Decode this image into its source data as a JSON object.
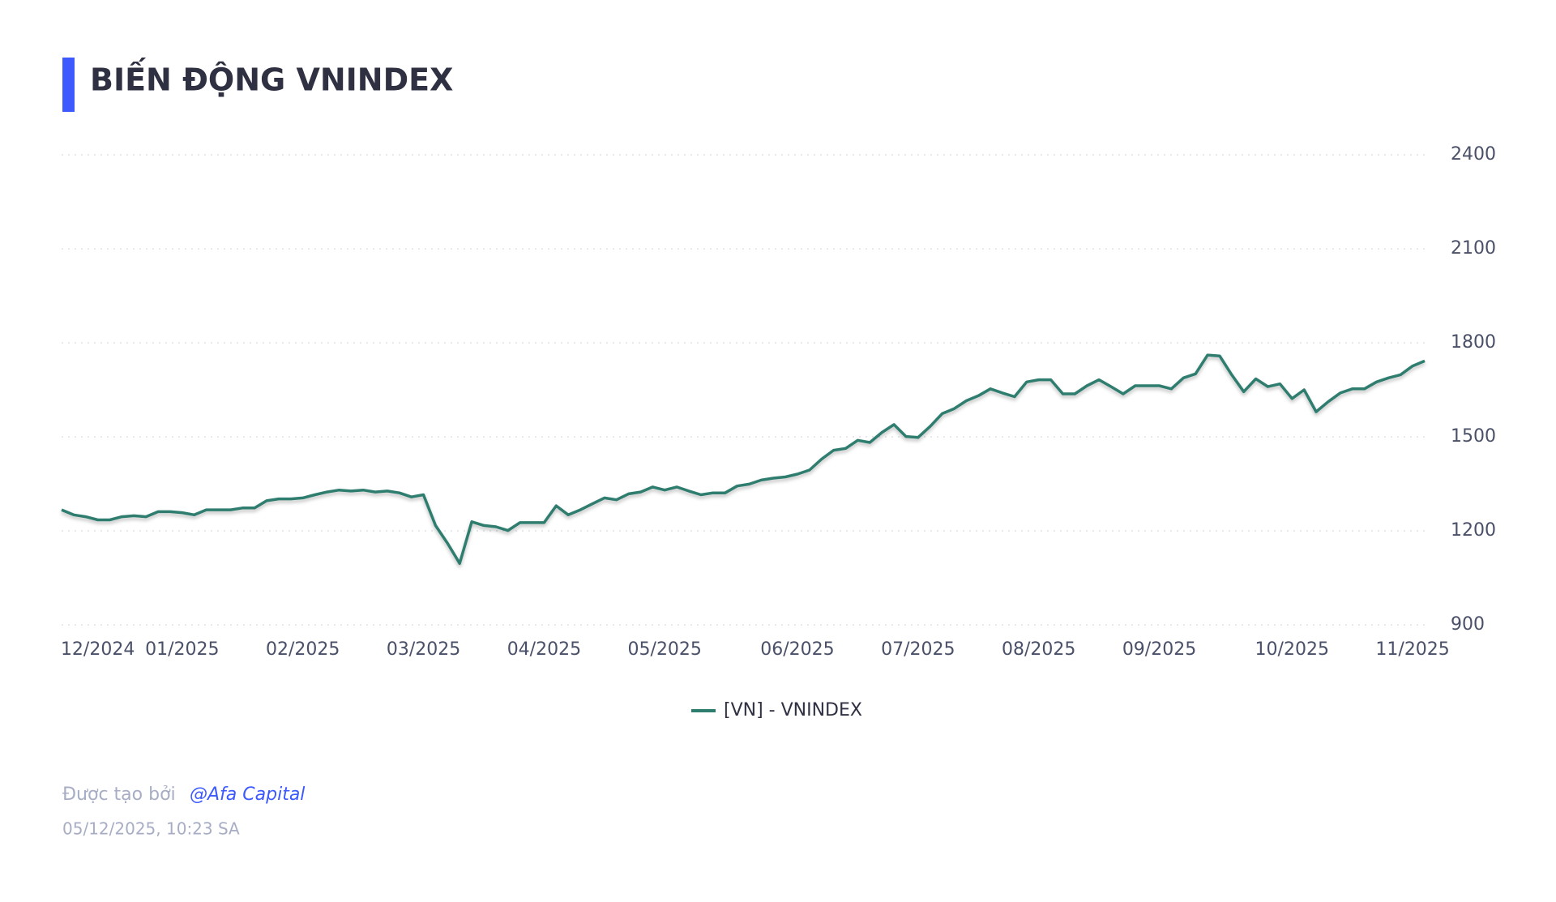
{
  "chart_data": {
    "type": "line",
    "title": "BIẾN ĐỘNG VNINDEX",
    "categories": [
      null,
      null,
      null,
      "12/2024",
      null,
      null,
      null,
      null,
      null,
      null,
      "01/2025",
      null,
      null,
      null,
      null,
      null,
      null,
      null,
      null,
      null,
      "02/2025",
      null,
      null,
      null,
      null,
      null,
      null,
      null,
      null,
      null,
      "03/2025",
      null,
      null,
      null,
      null,
      null,
      null,
      null,
      null,
      null,
      "04/2025",
      null,
      null,
      null,
      null,
      null,
      null,
      null,
      null,
      null,
      "05/2025",
      null,
      null,
      null,
      null,
      null,
      null,
      null,
      null,
      null,
      null,
      "06/2025",
      null,
      null,
      null,
      null,
      null,
      null,
      null,
      null,
      null,
      "07/2025",
      null,
      null,
      null,
      null,
      null,
      null,
      null,
      null,
      null,
      "08/2025",
      null,
      null,
      null,
      null,
      null,
      null,
      null,
      null,
      null,
      "09/2025",
      null,
      null,
      null,
      null,
      null,
      null,
      null,
      null,
      null,
      null,
      "10/2025",
      null,
      null,
      null,
      null,
      null,
      null,
      null,
      null,
      null,
      "11/2025",
      null
    ],
    "series": [
      {
        "name": "[VN] - VNINDEX",
        "color": "#2e7d6e",
        "values": [
          1267,
          1251,
          1245,
          1235,
          1235,
          1245,
          1248,
          1245,
          1261,
          1261,
          1258,
          1251,
          1267,
          1267,
          1267,
          1273,
          1273,
          1296,
          1302,
          1302,
          1305,
          1315,
          1324,
          1330,
          1327,
          1330,
          1324,
          1327,
          1321,
          1308,
          1315,
          1217,
          1160,
          1096,
          1229,
          1217,
          1213,
          1201,
          1226,
          1226,
          1226,
          1280,
          1251,
          1267,
          1286,
          1305,
          1299,
          1318,
          1324,
          1340,
          1330,
          1340,
          1327,
          1315,
          1321,
          1321,
          1343,
          1349,
          1362,
          1368,
          1372,
          1381,
          1394,
          1429,
          1457,
          1463,
          1489,
          1482,
          1514,
          1539,
          1501,
          1498,
          1533,
          1574,
          1590,
          1615,
          1631,
          1653,
          1640,
          1628,
          1675,
          1682,
          1682,
          1637,
          1637,
          1663,
          1682,
          1660,
          1637,
          1663,
          1663,
          1663,
          1653,
          1688,
          1701,
          1761,
          1758,
          1698,
          1644,
          1685,
          1660,
          1669,
          1622,
          1650,
          1580,
          1612,
          1640,
          1653,
          1653,
          1675,
          1688,
          1698,
          1726,
          1742
        ]
      }
    ],
    "ylim": [
      900,
      2400
    ],
    "yticks": [
      900,
      1200,
      1500,
      1800,
      2100,
      2400
    ],
    "grid": true
  },
  "footer": {
    "credit_prefix": "Được tạo bởi",
    "credit_name": "@Afa Capital",
    "timestamp": "05/12/2025, 10:23 SA"
  }
}
